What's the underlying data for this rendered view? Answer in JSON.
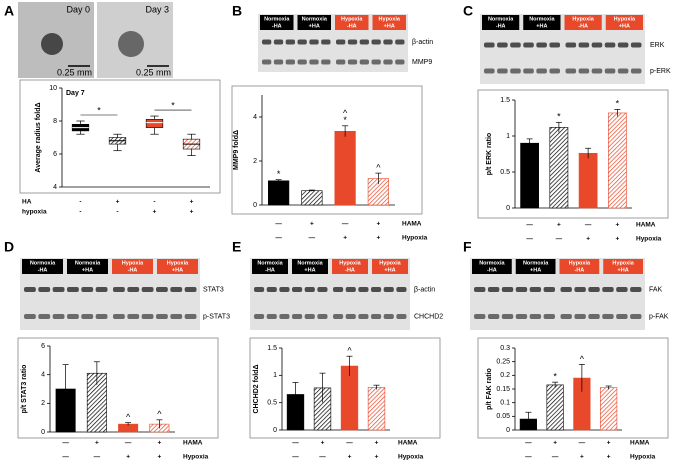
{
  "chart_data": [
    {
      "type": "box",
      "panel": "A",
      "images": [
        {
          "label": "Day 0",
          "scale": "0.25 mm"
        },
        {
          "label": "Day 3",
          "scale": "0.25 mm"
        }
      ],
      "title": "Day 7",
      "y_label": "Average radius foldΔ",
      "ylim": [
        4,
        10
      ],
      "yticks": [
        4,
        6,
        8,
        10
      ],
      "min": [
        7.2,
        6.2,
        7.2,
        5.9
      ],
      "q1": [
        7.4,
        6.6,
        7.6,
        6.3
      ],
      "median": [
        7.6,
        6.8,
        7.9,
        6.6
      ],
      "q3": [
        7.8,
        7.0,
        8.1,
        6.9
      ],
      "max": [
        8.0,
        7.2,
        8.3,
        7.2
      ],
      "colors": [
        "#000000",
        "#000000",
        "#e8492a",
        "#e8492a"
      ],
      "patterns": [
        "solid",
        "hatched",
        "solid",
        "hatched"
      ],
      "brackets": [
        "*",
        "*"
      ],
      "conditions": [
        {
          "name": "HA",
          "values": [
            "-",
            "+",
            "-",
            "+"
          ]
        },
        {
          "name": "hypoxia",
          "values": [
            "-",
            "-",
            "+",
            "+"
          ]
        }
      ]
    },
    {
      "type": "bar",
      "panel": "B",
      "lanes": [
        {
          "line1": "Normoxia",
          "line2": "-HA"
        },
        {
          "line1": "Normoxia",
          "line2": "+HA"
        },
        {
          "line1": "Hypoxia",
          "line2": "-HA"
        },
        {
          "line1": "Hypoxia",
          "line2": "+HA"
        }
      ],
      "bands": [
        "β-actin",
        "MMP9"
      ],
      "y_label": "MMP9 foldΔ",
      "ylim": [
        0,
        5
      ],
      "yticks": [
        0,
        2,
        4
      ],
      "values": [
        1.1,
        0.65,
        3.35,
        1.2
      ],
      "errors": [
        0.05,
        0.03,
        0.25,
        0.25
      ],
      "annotations": [
        [
          "*"
        ],
        [],
        [
          "*",
          "^"
        ],
        [
          "^"
        ]
      ],
      "colors": [
        "#000000",
        "#000000",
        "#e8492a",
        "#e8492a"
      ],
      "patterns": [
        "solid",
        "hatched",
        "solid",
        "hatched"
      ],
      "conditions": [
        {
          "name": "HAMA",
          "values": [
            "—",
            "+",
            "—",
            "+"
          ]
        },
        {
          "name": "Hypoxia",
          "values": [
            "—",
            "—",
            "+",
            "+"
          ]
        }
      ]
    },
    {
      "type": "bar",
      "panel": "C",
      "lanes": [
        {
          "line1": "Normoxia",
          "line2": "-HA"
        },
        {
          "line1": "Normoxia",
          "line2": "+HA"
        },
        {
          "line1": "Hypoxia",
          "line2": "-HA"
        },
        {
          "line1": "Hypoxia",
          "line2": "+HA"
        }
      ],
      "bands": [
        "ERK",
        "p-ERK"
      ],
      "y_label": "p/t ERK ratio",
      "ylim": [
        0,
        1.5
      ],
      "yticks": [
        0,
        0.5,
        1,
        1.5
      ],
      "values": [
        0.9,
        1.12,
        0.76,
        1.32
      ],
      "errors": [
        0.06,
        0.07,
        0.07,
        0.05
      ],
      "annotations": [
        [],
        [
          "*"
        ],
        [],
        [
          "*"
        ]
      ],
      "colors": [
        "#000000",
        "#000000",
        "#e8492a",
        "#e8492a"
      ],
      "patterns": [
        "solid",
        "hatched",
        "solid",
        "hatched"
      ],
      "conditions": [
        {
          "name": "HAMA",
          "values": [
            "—",
            "+",
            "—",
            "+"
          ]
        },
        {
          "name": "Hypoxia",
          "values": [
            "—",
            "—",
            "+",
            "+"
          ]
        }
      ]
    },
    {
      "type": "bar",
      "panel": "D",
      "lanes": [
        {
          "line1": "Normoxia",
          "line2": "-HA"
        },
        {
          "line1": "Normoxia",
          "line2": "+HA"
        },
        {
          "line1": "Hypoxia",
          "line2": "-HA"
        },
        {
          "line1": "Hypoxia",
          "line2": "+HA"
        }
      ],
      "bands": [
        "STAT3",
        "p-STAT3"
      ],
      "y_label": "p/t STAT3 ratio",
      "ylim": [
        0,
        6
      ],
      "yticks": [
        0,
        2,
        4,
        6
      ],
      "values": [
        3.0,
        4.1,
        0.55,
        0.55
      ],
      "errors": [
        1.7,
        0.8,
        0.1,
        0.3
      ],
      "annotations": [
        [],
        [],
        [
          "^"
        ],
        [
          "^"
        ]
      ],
      "colors": [
        "#000000",
        "#000000",
        "#e8492a",
        "#e8492a"
      ],
      "patterns": [
        "solid",
        "hatched",
        "solid",
        "hatched"
      ],
      "conditions": [
        {
          "name": "HAMA",
          "values": [
            "—",
            "+",
            "—",
            "+"
          ]
        },
        {
          "name": "Hypoxia",
          "values": [
            "—",
            "—",
            "+",
            "+"
          ]
        }
      ]
    },
    {
      "type": "bar",
      "panel": "E",
      "lanes": [
        {
          "line1": "Normoxia",
          "line2": "-HA"
        },
        {
          "line1": "Normoxia",
          "line2": "+HA"
        },
        {
          "line1": "Hypoxia",
          "line2": "-HA"
        },
        {
          "line1": "Hypoxia",
          "line2": "+HA"
        }
      ],
      "bands": [
        "β-actin",
        "CHCHD2"
      ],
      "y_label": "CHCHD2 foldΔ",
      "ylim": [
        0,
        1.5
      ],
      "yticks": [
        0,
        0.5,
        1,
        1.5
      ],
      "values": [
        0.65,
        0.77,
        1.17,
        0.78
      ],
      "errors": [
        0.22,
        0.27,
        0.18,
        0.04
      ],
      "annotations": [
        [],
        [],
        [
          "^"
        ],
        []
      ],
      "colors": [
        "#000000",
        "#000000",
        "#e8492a",
        "#e8492a"
      ],
      "patterns": [
        "solid",
        "hatched",
        "solid",
        "hatched"
      ],
      "conditions": [
        {
          "name": "HAMA",
          "values": [
            "—",
            "+",
            "—",
            "+"
          ]
        },
        {
          "name": "Hypoxia",
          "values": [
            "—",
            "—",
            "+",
            "+"
          ]
        }
      ]
    },
    {
      "type": "bar",
      "panel": "F",
      "lanes": [
        {
          "line1": "Normoxia",
          "line2": "-HA"
        },
        {
          "line1": "Normoxia",
          "line2": "+HA"
        },
        {
          "line1": "Hypoxia",
          "line2": "-HA"
        },
        {
          "line1": "Hypoxia",
          "line2": "+HA"
        }
      ],
      "bands": [
        "FAK",
        "p-FAK"
      ],
      "y_label": "p/t FAK ratio",
      "ylim": [
        0,
        0.3
      ],
      "yticks": [
        0,
        0.05,
        0.1,
        0.15,
        0.2,
        0.25,
        0.3
      ],
      "values": [
        0.04,
        0.165,
        0.19,
        0.155
      ],
      "errors": [
        0.025,
        0.01,
        0.05,
        0.006
      ],
      "annotations": [
        [],
        [
          "*"
        ],
        [
          "^"
        ],
        []
      ],
      "colors": [
        "#000000",
        "#000000",
        "#e8492a",
        "#e8492a"
      ],
      "patterns": [
        "solid",
        "hatched",
        "solid",
        "hatched"
      ],
      "conditions": [
        {
          "name": "HAMA",
          "values": [
            "—",
            "+",
            "—",
            "+"
          ]
        },
        {
          "name": "Hypoxia",
          "values": [
            "—",
            "—",
            "+",
            "+"
          ]
        }
      ]
    }
  ]
}
